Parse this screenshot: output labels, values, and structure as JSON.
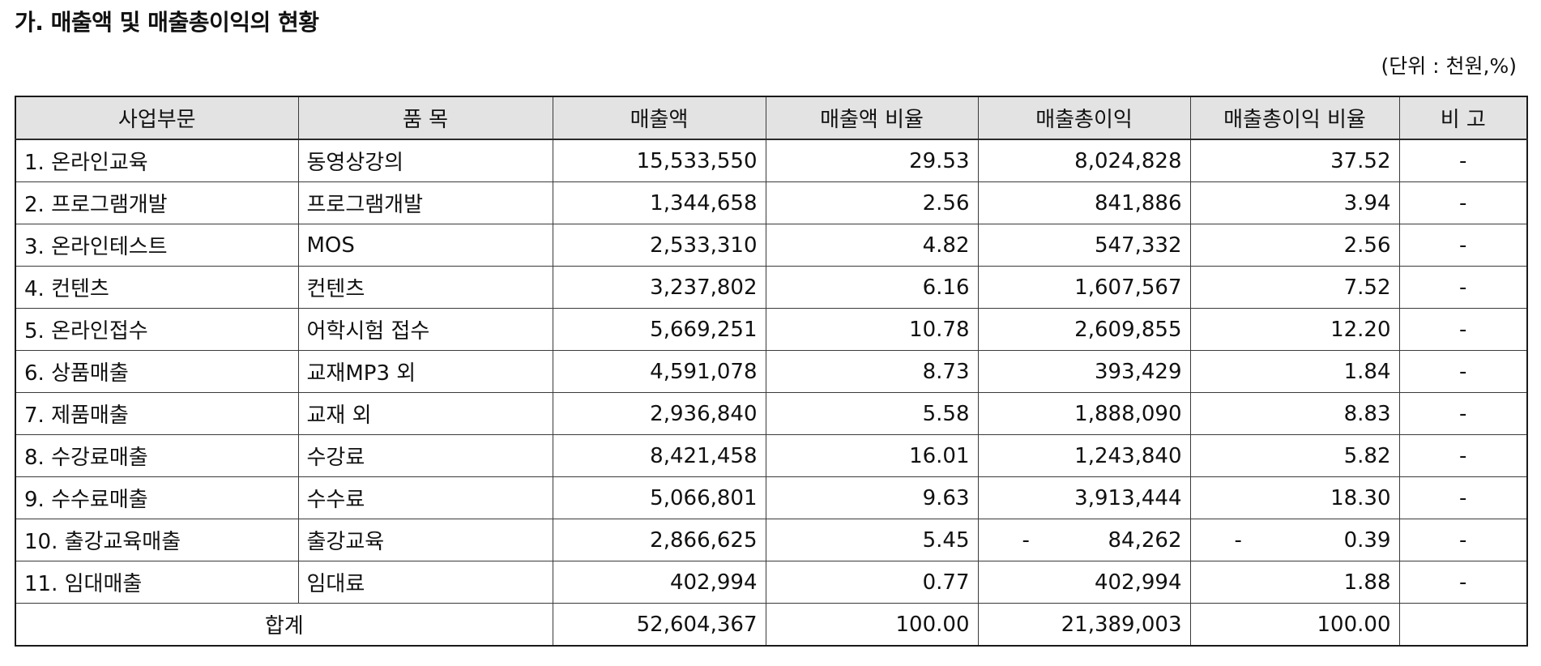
{
  "title": "가. 매출액 및 매출총이익의 현황",
  "unit": "(단위 : 천원,%)",
  "columns": [
    "사업부문",
    "품 목",
    "매출액",
    "매출액 비율",
    "매출총이익",
    "매출총이익 비율",
    "비 고"
  ],
  "rows": [
    {
      "segment": "1. 온라인교육",
      "item": "동영상강의",
      "sales": "15,533,550",
      "sales_ratio": "29.53",
      "gross_profit": "8,024,828",
      "gp_ratio": "37.52",
      "note": "-"
    },
    {
      "segment": "2. 프로그램개발",
      "item": "프로그램개발",
      "sales": "1,344,658",
      "sales_ratio": "2.56",
      "gross_profit": "841,886",
      "gp_ratio": "3.94",
      "note": "-"
    },
    {
      "segment": "3. 온라인테스트",
      "item": "MOS",
      "sales": "2,533,310",
      "sales_ratio": "4.82",
      "gross_profit": "547,332",
      "gp_ratio": "2.56",
      "note": "-"
    },
    {
      "segment": "4. 컨텐츠",
      "item": "컨텐츠",
      "sales": "3,237,802",
      "sales_ratio": "6.16",
      "gross_profit": "1,607,567",
      "gp_ratio": "7.52",
      "note": "-"
    },
    {
      "segment": "5. 온라인접수",
      "item": "어학시험 접수",
      "sales": "5,669,251",
      "sales_ratio": "10.78",
      "gross_profit": "2,609,855",
      "gp_ratio": "12.20",
      "note": "-"
    },
    {
      "segment": "6. 상품매출",
      "item": "교재MP3 외",
      "sales": "4,591,078",
      "sales_ratio": "8.73",
      "gross_profit": "393,429",
      "gp_ratio": "1.84",
      "note": "-"
    },
    {
      "segment": "7. 제품매출",
      "item": "교재 외",
      "sales": "2,936,840",
      "sales_ratio": "5.58",
      "gross_profit": "1,888,090",
      "gp_ratio": "8.83",
      "note": "-"
    },
    {
      "segment": "8. 수강료매출",
      "item": "수강료",
      "sales": "8,421,458",
      "sales_ratio": "16.01",
      "gross_profit": "1,243,840",
      "gp_ratio": "5.82",
      "note": "-"
    },
    {
      "segment": "9. 수수료매출",
      "item": "수수료",
      "sales": "5,066,801",
      "sales_ratio": "9.63",
      "gross_profit": "3,913,444",
      "gp_ratio": "18.30",
      "note": "-"
    },
    {
      "segment": "10. 출강교육매출",
      "item": "출강교육",
      "sales": "2,866,625",
      "sales_ratio": "5.45",
      "gross_profit_sign": "-",
      "gross_profit": "84,262",
      "gp_ratio_sign": "-",
      "gp_ratio": "0.39",
      "note": "-"
    },
    {
      "segment": "11. 임대매출",
      "item": "임대료",
      "sales": "402,994",
      "sales_ratio": "0.77",
      "gross_profit": "402,994",
      "gp_ratio": "1.88",
      "note": "-"
    }
  ],
  "total": {
    "label": "합계",
    "sales": "52,604,367",
    "sales_ratio": "100.00",
    "gross_profit": "21,389,003",
    "gp_ratio": "100.00",
    "note": ""
  }
}
